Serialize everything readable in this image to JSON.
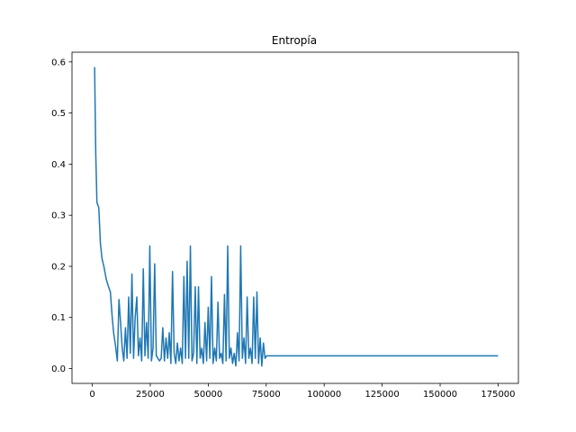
{
  "chart_data": {
    "type": "line",
    "title": "Entropía",
    "xlabel": "",
    "ylabel": "",
    "xlim": [
      -8750,
      183750
    ],
    "ylim": [
      -0.029,
      0.619
    ],
    "grid": false,
    "x_ticks": [
      0,
      25000,
      50000,
      75000,
      100000,
      125000,
      150000,
      175000
    ],
    "y_ticks": [
      0.0,
      0.1,
      0.2,
      0.3,
      0.4,
      0.5,
      0.6
    ],
    "x_tick_labels": [
      "0",
      "25000",
      "50000",
      "75000",
      "100000",
      "125000",
      "150000",
      "175000"
    ],
    "y_tick_labels": [
      "0.0",
      "0.1",
      "0.2",
      "0.3",
      "0.4",
      "0.5",
      "0.6"
    ],
    "series": [
      {
        "color": "#1f77b4",
        "x": [
          1000,
          1500,
          2000,
          2800,
          3500,
          4200,
          5000,
          6000,
          7000,
          7800,
          8600,
          9200,
          10000,
          10800,
          11500,
          12200,
          12900,
          13600,
          14300,
          15000,
          15700,
          16400,
          17100,
          17800,
          18500,
          19200,
          19900,
          20600,
          21300,
          22000,
          22700,
          23400,
          24100,
          24800,
          25500,
          26200,
          26900,
          27600,
          28300,
          29000,
          29700,
          30400,
          31100,
          31800,
          32500,
          33200,
          33900,
          34600,
          35300,
          36000,
          36700,
          37400,
          38100,
          38800,
          39500,
          40200,
          40900,
          41600,
          42300,
          43000,
          43700,
          44400,
          45100,
          45800,
          46500,
          47200,
          47900,
          48600,
          49300,
          50000,
          50700,
          51400,
          52100,
          52800,
          53500,
          54200,
          54900,
          55600,
          56300,
          57000,
          57700,
          58400,
          59100,
          59800,
          60500,
          61200,
          61900,
          62600,
          63300,
          64000,
          64700,
          65400,
          66100,
          66800,
          67500,
          68200,
          68900,
          69600,
          70300,
          71000,
          71700,
          72400,
          73100,
          73800,
          74500,
          75200,
          75900,
          76600,
          77300,
          78000,
          78700,
          79400,
          80100,
          80800,
          81500,
          82200,
          82900,
          83600,
          84300,
          85000,
          85700,
          86400,
          87000,
          100000,
          125000,
          150000,
          175000
        ],
        "values": [
          0.59,
          0.42,
          0.325,
          0.315,
          0.245,
          0.215,
          0.2,
          0.175,
          0.16,
          0.15,
          0.1,
          0.07,
          0.045,
          0.015,
          0.135,
          0.09,
          0.04,
          0.015,
          0.08,
          0.02,
          0.14,
          0.03,
          0.185,
          0.02,
          0.1,
          0.14,
          0.025,
          0.06,
          0.015,
          0.195,
          0.025,
          0.09,
          0.02,
          0.24,
          0.015,
          0.04,
          0.205,
          0.025,
          0.02,
          0.015,
          0.02,
          0.08,
          0.015,
          0.06,
          0.02,
          0.07,
          0.01,
          0.19,
          0.03,
          0.01,
          0.05,
          0.015,
          0.04,
          0.01,
          0.18,
          0.02,
          0.21,
          0.02,
          0.24,
          0.015,
          0.03,
          0.16,
          0.01,
          0.16,
          0.02,
          0.04,
          0.01,
          0.09,
          0.015,
          0.12,
          0.02,
          0.18,
          0.01,
          0.04,
          0.015,
          0.13,
          0.02,
          0.03,
          0.01,
          0.145,
          0.015,
          0.24,
          0.02,
          0.04,
          0.01,
          0.03,
          0.005,
          0.07,
          0.015,
          0.24,
          0.02,
          0.06,
          0.01,
          0.14,
          0.02,
          0.04,
          0.01,
          0.14,
          0.02,
          0.15,
          0.01,
          0.06,
          0.005,
          0.05,
          0.02,
          0.025,
          0.025,
          0.025,
          0.025,
          0.025,
          0.025,
          0.025,
          0.025,
          0.025,
          0.025,
          0.025,
          0.025,
          0.025,
          0.025,
          0.025,
          0.025,
          0.025,
          0.025,
          0.025,
          0.025,
          0.025,
          0.025
        ]
      }
    ]
  }
}
